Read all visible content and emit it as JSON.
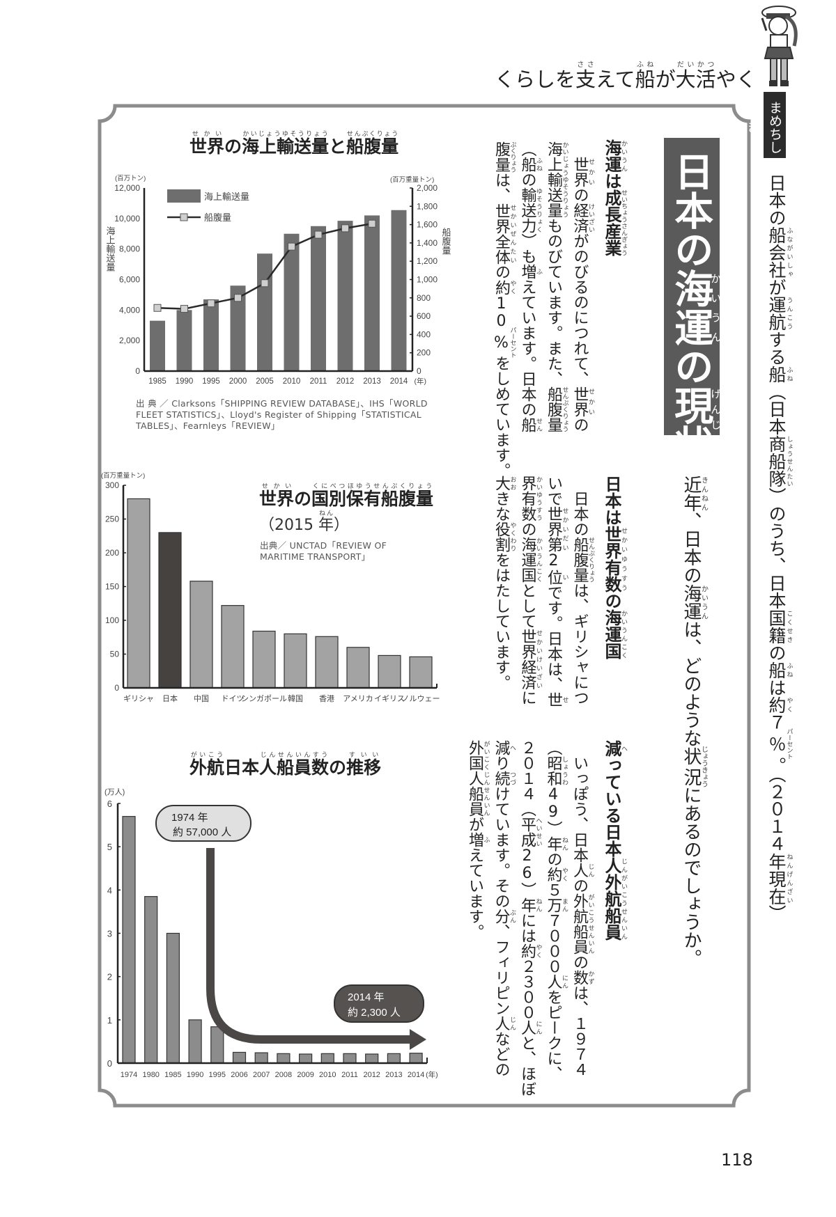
{
  "header": {
    "segs": [
      "くらしを",
      [
        "支",
        "ささ"
      ],
      "えて",
      [
        "船",
        "ふね"
      ],
      "が",
      [
        "大活",
        "だいかつ"
      ],
      "やく"
    ]
  },
  "sidebar": {
    "badge": "まめちしき",
    "segs": [
      "日本の",
      [
        "船会社",
        "ふながいしゃ"
      ],
      "が",
      [
        "運航",
        "うんこう"
      ],
      "する",
      [
        "船",
        "ふね"
      ],
      "（日本",
      [
        "商船隊",
        "しょうせんたい"
      ],
      "）のうち、日本",
      [
        "国籍",
        "こくせき"
      ],
      "の",
      [
        "船",
        "ふね"
      ],
      "は",
      [
        "約",
        "やく"
      ],
      "７",
      [
        "％",
        "パーセント"
      ],
      "。（２０１４",
      [
        "年",
        "ねん"
      ],
      [
        "現在",
        "げんざい"
      ],
      "）"
    ]
  },
  "main_title": {
    "segs": [
      "日本の",
      [
        "海運",
        "かいうん"
      ],
      "の",
      [
        "現状",
        "げんじょう"
      ]
    ]
  },
  "lead": {
    "segs": [
      [
        "近年",
        "きんねん"
      ],
      "、日本の",
      [
        "海運",
        "かいうん"
      ],
      "は、どのような",
      [
        "状況",
        "じょうきょう"
      ],
      "にあるのでしょうか。"
    ]
  },
  "sections": [
    {
      "heading": [
        [
          "海運",
          "かいうん"
        ],
        "は",
        [
          "成長産業",
          "せいちょうさんぎょう"
        ]
      ],
      "lines": [
        [
          "　",
          [
            "世界",
            "せかい"
          ],
          "の",
          [
            "経済",
            "けいざい"
          ],
          "がのびるのにつれて、",
          [
            "世界",
            "せかい"
          ],
          "の"
        ],
        [
          [
            "海上輸送量",
            "かいじょうゆそうりょう"
          ],
          "ものびています。また、",
          [
            "船腹量",
            "せんぷくりょう"
          ]
        ],
        [
          "（",
          [
            "船",
            "ふね"
          ],
          "の",
          [
            "輸送力",
            "ゆそうりょく"
          ],
          "）も",
          [
            "増",
            "ふ"
          ],
          "えています。日本の",
          [
            "船",
            "せん"
          ]
        ],
        [
          [
            "腹量",
            "ぷくりょう"
          ],
          "は、",
          [
            "世界全体",
            "せかいぜんたい"
          ],
          "の",
          [
            "約",
            "やく"
          ],
          "10",
          [
            "%",
            "パーセント"
          ],
          "をしめています。"
        ]
      ]
    },
    {
      "heading": [
        "日本は",
        [
          "世界有数",
          "せかいゆうすう"
        ],
        "の",
        [
          "海運国",
          "かいうんこく"
        ]
      ],
      "lines": [
        [
          "　日本の",
          [
            "船腹量",
            "せんぷくりょう"
          ],
          "は、ギリシャにつ"
        ],
        [
          "いで",
          [
            "世界第",
            "せかいだい"
          ],
          "2",
          [
            "位",
            "い"
          ],
          "です。日本は、",
          [
            "世",
            "せ"
          ]
        ],
        [
          [
            "界有数",
            "かいゆうすう"
          ],
          "の",
          [
            "海運国",
            "かいうんこく"
          ],
          "として",
          [
            "世界経済",
            "せかいけいざい"
          ],
          "に"
        ],
        [
          [
            "大",
            "おお"
          ],
          "きな",
          [
            "役割",
            "やくわり"
          ],
          "をはたしています。"
        ]
      ]
    },
    {
      "heading": [
        [
          "減",
          "へ"
        ],
        "っている日本",
        [
          "人外航船員",
          "じんがいこうせんいん"
        ]
      ],
      "lines": [
        [
          "　いっぽう、日本",
          [
            "人",
            "じん"
          ],
          "の",
          [
            "外航船員",
            "がいこうせんいん"
          ],
          "の",
          [
            "数",
            "かず"
          ],
          "は、１９７４"
        ],
        [
          "（",
          [
            "昭和",
            "しょうわ"
          ],
          "49）",
          [
            "年",
            "ねん"
          ],
          "の",
          [
            "約",
            "やく"
          ],
          "５",
          [
            "万",
            "まん"
          ],
          "７０００",
          [
            "人",
            "にん"
          ],
          "をピークに、"
        ],
        [
          "２０１４（",
          [
            "平成",
            "へいせい"
          ],
          "26）",
          [
            "年",
            "ねん"
          ],
          "には",
          [
            "約",
            "やく"
          ],
          "２３００",
          [
            "人",
            "にん"
          ],
          "と、ほぼ"
        ],
        [
          [
            "減",
            "へ"
          ],
          "り",
          [
            "続",
            "つづ"
          ],
          "けています。その",
          [
            "分",
            "ぶん"
          ],
          "、フィリピン",
          [
            "人",
            "じん"
          ],
          "などの"
        ],
        [
          [
            "外国人船員",
            "がいこくじんせんいん"
          ],
          "が",
          [
            "増",
            "ふ"
          ],
          "えています。"
        ]
      ]
    }
  ],
  "page_number": "118",
  "chart_data": [
    {
      "type": "bar+line",
      "title_segs": [
        [
          "世界",
          "せかい"
        ],
        "の",
        [
          "海上輸送量",
          "かいじょうゆそうりょう"
        ],
        "と",
        [
          "船腹量",
          "せんぷくりょう"
        ]
      ],
      "categories": [
        "1985",
        "1990",
        "1995",
        "2000",
        "2005",
        "2010",
        "2011",
        "2012",
        "2013",
        "2014"
      ],
      "x_unit": "(年)",
      "series": [
        {
          "name": "海上輸送量",
          "type": "bar",
          "axis": "left",
          "values": [
            3300,
            4000,
            4700,
            5600,
            7700,
            9000,
            9500,
            9850,
            10200,
            10550
          ]
        },
        {
          "name": "船腹量",
          "type": "line",
          "axis": "right",
          "values": [
            690,
            680,
            740,
            800,
            960,
            1360,
            1490,
            1560,
            1610,
            null
          ]
        }
      ],
      "left_axis": {
        "label": "海上輸送量",
        "unit": "(百万トン)",
        "range": [
          0,
          12000
        ],
        "ticks": [
          0,
          2000,
          4000,
          6000,
          8000,
          10000,
          12000
        ]
      },
      "right_axis": {
        "label": "船腹量",
        "unit": "(百万重量トン)",
        "range": [
          0,
          2000
        ],
        "ticks": [
          0,
          200,
          400,
          600,
          800,
          1000,
          1200,
          1400,
          1600,
          1800,
          2000
        ]
      },
      "legend_position": "top-left",
      "source": "出 典 ／ Clarksons「SHIPPING REVIEW DATABASE」、IHS「WORLD FLEET STATISTICS」、Lloyd's Register of Shipping「STATISTICAL TABLES」、Fearnleys「REVIEW」",
      "colors": {
        "bar": "#6e6e6e",
        "line": "#2a2a2a",
        "marker": "#cfcfcf"
      }
    },
    {
      "type": "bar",
      "title_segs": [
        [
          "世界",
          "せかい"
        ],
        "の",
        [
          "国別保有船腹量",
          "くにべつほゆうせんぷくりょう"
        ]
      ],
      "subtitle_segs": [
        "（2015 ",
        [
          "年",
          "ねん"
        ],
        "）"
      ],
      "categories": [
        "ギリシャ",
        "日本",
        "中国",
        "ドイツ",
        "シンガポール",
        "韓国",
        "香港",
        "アメリカ",
        "イギリス",
        "ノルウェー"
      ],
      "values": [
        280,
        230,
        158,
        122,
        84,
        80,
        76,
        60,
        48,
        46
      ],
      "highlight": "日本",
      "y_axis": {
        "unit": "(百万重量トン)",
        "range": [
          0,
          300
        ],
        "ticks": [
          0,
          50,
          100,
          150,
          200,
          250,
          300
        ]
      },
      "source": "出典／ UNCTAD「REVIEW OF MARITIME TRANSPORT」",
      "colors": {
        "bar": "#a3a3a3",
        "highlight": "#464240"
      }
    },
    {
      "type": "bar",
      "title_segs": [
        [
          "外航",
          "がいこう"
        ],
        "日本",
        [
          "人船員数",
          "じんせんいんすう"
        ],
        "の",
        [
          "推移",
          "すいい"
        ]
      ],
      "categories": [
        "1974",
        "1980",
        "1985",
        "1990",
        "1995",
        "2006",
        "2007",
        "2008",
        "2009",
        "2010",
        "2011",
        "2012",
        "2013",
        "2014"
      ],
      "x_unit": "(年)",
      "values": [
        5.7,
        3.85,
        3.0,
        1.0,
        0.84,
        0.25,
        0.24,
        0.22,
        0.21,
        0.22,
        0.22,
        0.21,
        0.22,
        0.23
      ],
      "y_axis": {
        "unit": "(万人)",
        "range": [
          0,
          6
        ],
        "ticks": [
          0,
          1,
          2,
          3,
          4,
          5,
          6
        ]
      },
      "annotations": [
        {
          "lines": [
            "1974 年",
            "約 57,000 人"
          ],
          "style": "light"
        },
        {
          "lines": [
            "2014 年",
            "約 2,300 人"
          ],
          "style": "dark"
        }
      ],
      "colors": {
        "bar": "#8c8c8c",
        "arrow": "#4a4746"
      }
    }
  ]
}
